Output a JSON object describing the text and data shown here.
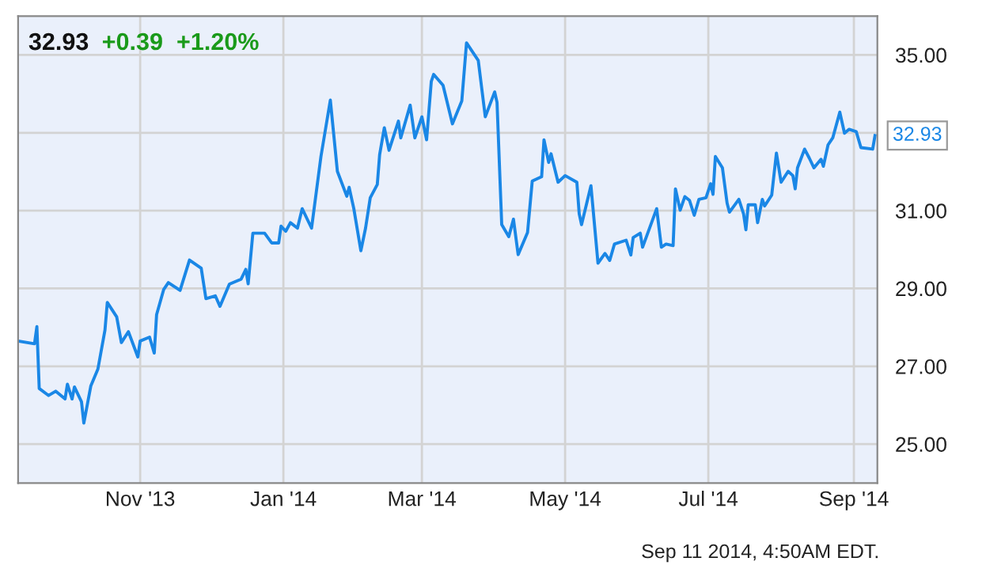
{
  "chart_data": {
    "type": "line",
    "title": "32.93",
    "subtitle": "+0.39  +1.20%",
    "annotations": [
      {
        "text": "32.93",
        "x": "2014-09-10",
        "y": 32.93
      },
      "Sep 11 2014, 4:50AM EDT."
    ],
    "xlim": [
      "2013-09-10",
      "2014-09-11"
    ],
    "ylim": [
      24,
      36
    ],
    "xticks": [
      {
        "value": "2013-11-01",
        "label": "Nov '13"
      },
      {
        "value": "2014-01-01",
        "label": "Jan '14"
      },
      {
        "value": "2014-03-01",
        "label": "Mar '14"
      },
      {
        "value": "2014-05-01",
        "label": "May '14"
      },
      {
        "value": "2014-07-01",
        "label": "Jul '14"
      },
      {
        "value": "2014-09-01",
        "label": "Sep '14"
      }
    ],
    "yticks": [
      {
        "value": 25,
        "label": "25.00"
      },
      {
        "value": 27,
        "label": "27.00"
      },
      {
        "value": 29,
        "label": "29.00"
      },
      {
        "value": 31,
        "label": "31.00"
      },
      {
        "value": 33,
        "label": null
      },
      {
        "value": 35,
        "label": "35.00"
      }
    ],
    "grid": true,
    "legend": false,
    "marker": "none",
    "line_style": "solid",
    "x": [
      "2013-09-10",
      "2013-09-17",
      "2013-09-18",
      "2013-09-19",
      "2013-09-23",
      "2013-09-26",
      "2013-09-30",
      "2013-10-01",
      "2013-10-03",
      "2013-10-04",
      "2013-10-07",
      "2013-10-08",
      "2013-10-11",
      "2013-10-14",
      "2013-10-17",
      "2013-10-18",
      "2013-10-22",
      "2013-10-24",
      "2013-10-27",
      "2013-10-31",
      "2013-11-01",
      "2013-11-05",
      "2013-11-07",
      "2013-11-08",
      "2013-11-11",
      "2013-11-13",
      "2013-11-18",
      "2013-11-22",
      "2013-11-27",
      "2013-11-29",
      "2013-12-03",
      "2013-12-05",
      "2013-12-09",
      "2013-12-14",
      "2013-12-16",
      "2013-12-17",
      "2013-12-19",
      "2013-12-24",
      "2013-12-27",
      "2013-12-30",
      "2013-12-31",
      "2014-01-02",
      "2014-01-04",
      "2014-01-07",
      "2014-01-09",
      "2014-01-13",
      "2014-01-17",
      "2014-01-21",
      "2014-01-24",
      "2014-01-28",
      "2014-01-29",
      "2014-01-31",
      "2014-02-03",
      "2014-02-05",
      "2014-02-07",
      "2014-02-10",
      "2014-02-11",
      "2014-02-13",
      "2014-02-15",
      "2014-02-19",
      "2014-02-20",
      "2014-02-24",
      "2014-02-26",
      "2014-03-01",
      "2014-03-03",
      "2014-03-05",
      "2014-03-06",
      "2014-03-10",
      "2014-03-14",
      "2014-03-18",
      "2014-03-20",
      "2014-03-25",
      "2014-03-28",
      "2014-04-01",
      "2014-04-02",
      "2014-04-04",
      "2014-04-07",
      "2014-04-09",
      "2014-04-11",
      "2014-04-15",
      "2014-04-17",
      "2014-04-21",
      "2014-04-22",
      "2014-04-24",
      "2014-04-25",
      "2014-04-28",
      "2014-05-01",
      "2014-05-06",
      "2014-05-07",
      "2014-05-08",
      "2014-05-12",
      "2014-05-15",
      "2014-05-18",
      "2014-05-20",
      "2014-05-22",
      "2014-05-27",
      "2014-05-29",
      "2014-05-30",
      "2014-06-02",
      "2014-06-03",
      "2014-06-09",
      "2014-06-11",
      "2014-06-13",
      "2014-06-16",
      "2014-06-17",
      "2014-06-19",
      "2014-06-21",
      "2014-06-23",
      "2014-06-25",
      "2014-06-27",
      "2014-06-30",
      "2014-07-02",
      "2014-07-03",
      "2014-07-04",
      "2014-07-07",
      "2014-07-09",
      "2014-07-10",
      "2014-07-14",
      "2014-07-16",
      "2014-07-17",
      "2014-07-18",
      "2014-07-21",
      "2014-07-22",
      "2014-07-24",
      "2014-07-25",
      "2014-07-28",
      "2014-07-30",
      "2014-08-01",
      "2014-08-04",
      "2014-08-06",
      "2014-08-07",
      "2014-08-08",
      "2014-08-11",
      "2014-08-13",
      "2014-08-15",
      "2014-08-18",
      "2014-08-19",
      "2014-08-21",
      "2014-08-23",
      "2014-08-26",
      "2014-08-28",
      "2014-08-30",
      "2014-09-02",
      "2014-09-04",
      "2014-09-09",
      "2014-09-10"
    ],
    "series": [
      {
        "color": "#1a87e6",
        "values": [
          27.65,
          27.58,
          28.02,
          26.43,
          26.25,
          26.36,
          26.16,
          26.54,
          26.16,
          26.47,
          26.09,
          25.54,
          26.5,
          26.93,
          27.93,
          28.64,
          28.27,
          27.61,
          27.89,
          27.24,
          27.65,
          27.75,
          27.34,
          28.33,
          28.97,
          29.15,
          28.95,
          29.73,
          29.52,
          28.74,
          28.81,
          28.54,
          29.11,
          29.24,
          29.49,
          29.12,
          30.42,
          30.42,
          30.17,
          30.17,
          30.6,
          30.47,
          30.69,
          30.55,
          31.05,
          30.55,
          32.39,
          33.84,
          32.01,
          31.37,
          31.6,
          31.05,
          29.97,
          30.55,
          31.33,
          31.67,
          32.44,
          33.13,
          32.55,
          33.3,
          32.87,
          33.71,
          32.87,
          33.41,
          32.82,
          34.32,
          34.5,
          34.22,
          33.23,
          33.82,
          35.31,
          34.86,
          33.41,
          34.05,
          33.78,
          30.64,
          30.33,
          30.78,
          29.87,
          30.44,
          31.76,
          31.87,
          32.82,
          32.24,
          32.46,
          31.73,
          31.9,
          31.73,
          30.92,
          30.64,
          31.64,
          29.65,
          29.9,
          29.72,
          30.14,
          30.24,
          29.86,
          30.31,
          30.42,
          30.06,
          31.05,
          30.06,
          30.14,
          30.1,
          31.56,
          31.01,
          31.36,
          31.26,
          30.88,
          31.29,
          31.33,
          31.69,
          31.42,
          32.39,
          32.1,
          31.19,
          30.96,
          31.29,
          30.92,
          30.51,
          31.15,
          31.15,
          30.69,
          31.29,
          31.12,
          31.4,
          32.48,
          31.73,
          32.01,
          31.9,
          31.56,
          32.1,
          32.58,
          32.35,
          32.1,
          32.32,
          32.14,
          32.69,
          32.87,
          33.53,
          32.99,
          33.09,
          33.03,
          32.62,
          32.58,
          32.93
        ]
      }
    ]
  }
}
